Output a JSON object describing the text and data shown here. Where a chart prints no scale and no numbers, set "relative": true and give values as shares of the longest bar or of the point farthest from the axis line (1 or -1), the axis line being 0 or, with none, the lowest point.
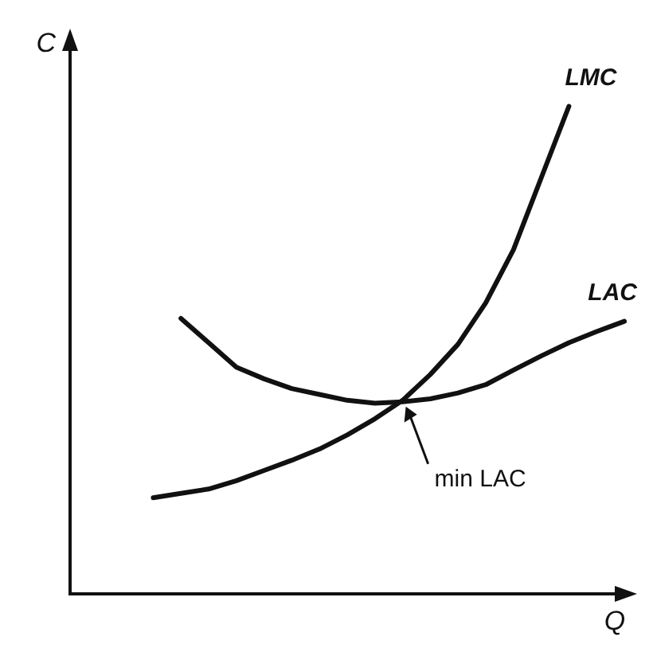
{
  "chart_data": {
    "type": "line",
    "relative": true,
    "xlabel": "Q",
    "ylabel": "C",
    "legend": false,
    "marker": "none",
    "line_style": "solid",
    "categories": [
      null,
      null,
      null,
      null,
      null,
      null,
      null,
      null,
      null,
      null,
      null,
      null,
      null,
      null,
      null,
      null,
      null,
      null,
      null,
      null,
      null
    ],
    "series": [
      {
        "name": "LMC",
        "color": "#111111",
        "values": [
          null,
          null,
          null,
          0.197,
          0.206,
          0.215,
          0.232,
          0.253,
          0.274,
          0.297,
          0.326,
          0.359,
          0.397,
          0.45,
          0.512,
          0.597,
          0.706,
          0.853,
          1,
          null,
          null
        ]
      },
      {
        "name": "LAC",
        "color": "#111111",
        "values": [
          null,
          null,
          null,
          null,
          0.565,
          0.515,
          0.465,
          0.441,
          0.421,
          0.409,
          0.397,
          0.391,
          0.394,
          0.4,
          0.412,
          0.429,
          0.459,
          0.488,
          0.515,
          0.538,
          0.559
        ]
      }
    ],
    "annotations": [
      "min LAC"
    ]
  }
}
